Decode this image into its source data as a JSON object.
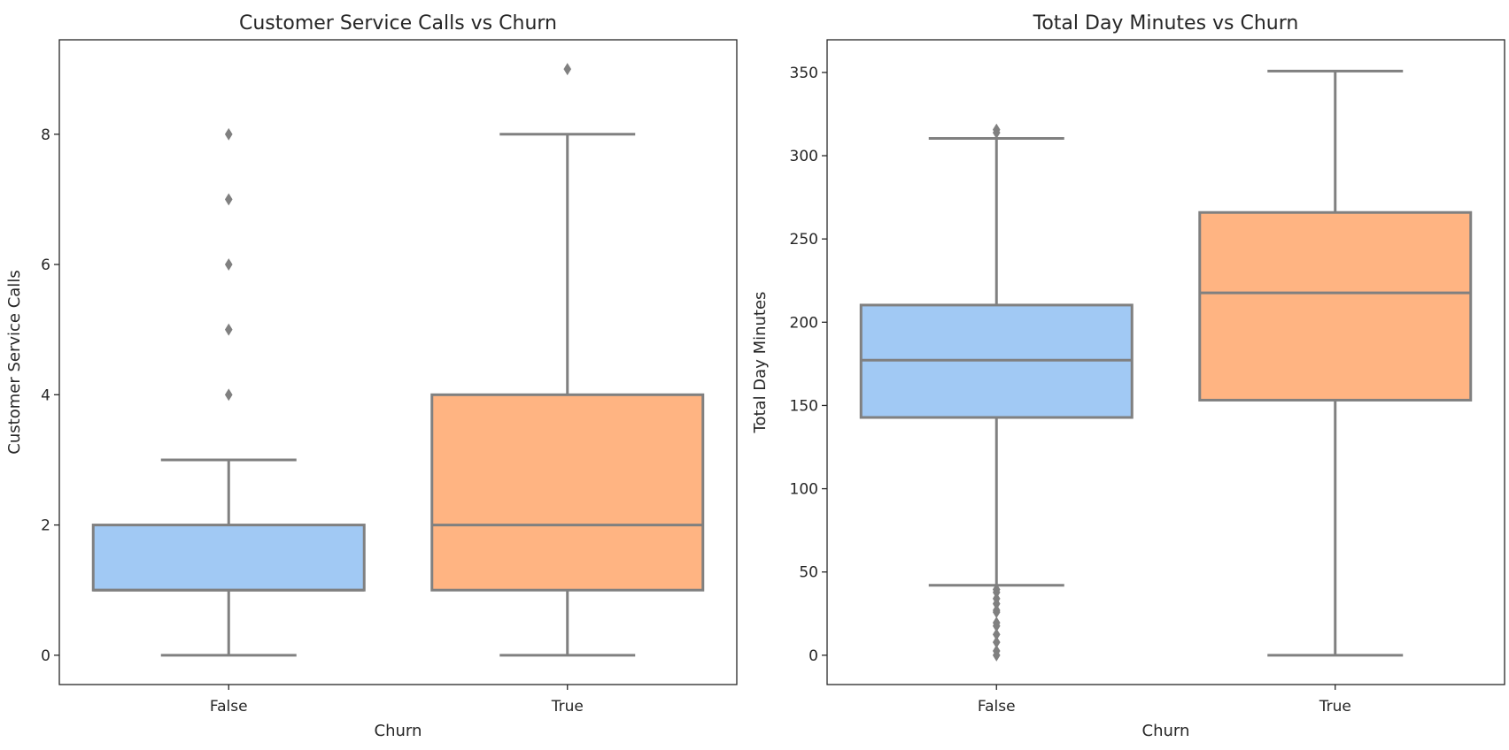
{
  "chart_data": [
    {
      "type": "box",
      "title": "Customer Service Calls vs Churn",
      "xlabel": "Churn",
      "ylabel": "Customer Service Calls",
      "categories": [
        "False",
        "True"
      ],
      "ylim": [
        -0.45,
        9.45
      ],
      "yticks": [
        0,
        2,
        4,
        6,
        8
      ],
      "ytick_labels": [
        "0",
        "2",
        "4",
        "6",
        "8"
      ],
      "grid": false,
      "boxes": [
        {
          "category": "False",
          "color": "#a1c9f4",
          "whislo": 0,
          "q1": 1,
          "median": 1,
          "q3": 2,
          "whishi": 3,
          "fliers": [
            4,
            5,
            6,
            7,
            8
          ]
        },
        {
          "category": "True",
          "color": "#ffb482",
          "whislo": 0,
          "q1": 1,
          "median": 2,
          "q3": 4,
          "whishi": 8,
          "fliers": [
            9
          ]
        }
      ]
    },
    {
      "type": "box",
      "title": "Total Day Minutes vs Churn",
      "xlabel": "Churn",
      "ylabel": "Total Day Minutes",
      "categories": [
        "False",
        "True"
      ],
      "ylim": [
        -17.6,
        369.6
      ],
      "yticks": [
        0,
        50,
        100,
        150,
        200,
        250,
        300,
        350
      ],
      "ytick_labels": [
        "0",
        "50",
        "100",
        "150",
        "200",
        "250",
        "300",
        "350"
      ],
      "grid": false,
      "boxes": [
        {
          "category": "False",
          "color": "#a1c9f4",
          "whislo": 42,
          "q1": 142.8,
          "median": 177.2,
          "q3": 210.3,
          "whishi": 310.4,
          "fliers": [
            0,
            2.6,
            7.8,
            12.5,
            17.6,
            19.5,
            25.9,
            27.0,
            30.9,
            34.0,
            37.8,
            39.5,
            313.8,
            315.6
          ]
        },
        {
          "category": "True",
          "color": "#ffb482",
          "whislo": 0,
          "q1": 153.2,
          "median": 217.6,
          "q3": 265.9,
          "whishi": 350.8,
          "fliers": []
        }
      ]
    }
  ]
}
